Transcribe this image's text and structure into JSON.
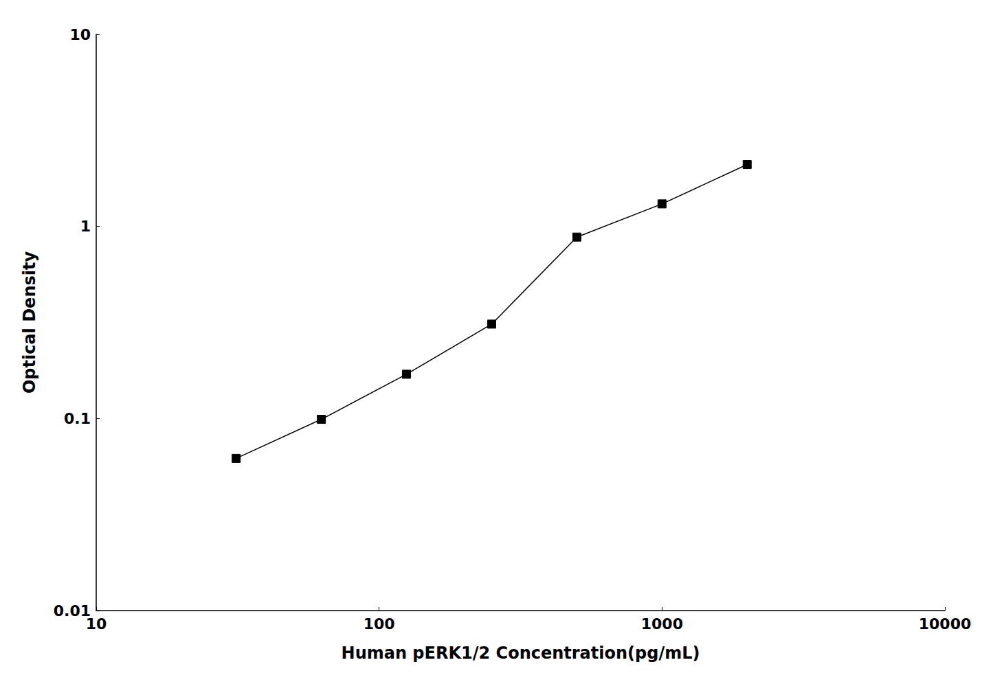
{
  "chart_data": {
    "type": "line",
    "x": [
      31.25,
      62.5,
      125,
      250,
      500,
      1000,
      2000
    ],
    "values": [
      0.062,
      0.099,
      0.17,
      0.31,
      0.88,
      1.31,
      2.1
    ],
    "xlabel": "Human pERK1/2 Concentration(pg/mL)",
    "ylabel": "Optical Density",
    "xlim": [
      10,
      10000
    ],
    "ylim": [
      0.01,
      10
    ],
    "xticks": [
      10,
      100,
      1000,
      10000
    ],
    "yticks": [
      0.01,
      0.1,
      1,
      10
    ],
    "log": true,
    "grid": false,
    "color": "black",
    "marker": "square"
  }
}
